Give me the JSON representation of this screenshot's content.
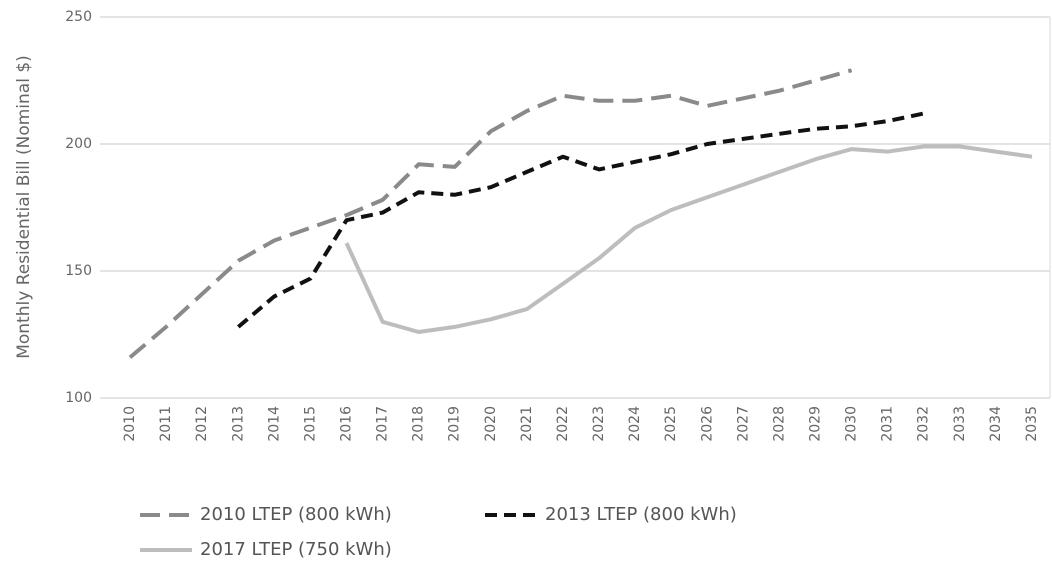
{
  "chart_data": {
    "type": "line",
    "ylabel": "Monthly Residential Bill (Nominal $)",
    "categories": [
      "2010",
      "2011",
      "2012",
      "2013",
      "2014",
      "2015",
      "2016",
      "2017",
      "2018",
      "2019",
      "2020",
      "2021",
      "2022",
      "2023",
      "2024",
      "2025",
      "2026",
      "2027",
      "2028",
      "2029",
      "2030",
      "2031",
      "2032",
      "2033",
      "2034",
      "2035"
    ],
    "ylim": [
      100,
      250
    ],
    "yticks": [
      100,
      150,
      200,
      250
    ],
    "grid": true,
    "legend": "bottom",
    "series": [
      {
        "name": "2010 LTEP (800 kWh)",
        "color": "#8a8a8a",
        "line_style": "long-dash",
        "values": [
          116,
          128,
          141,
          154,
          162,
          167,
          172,
          178,
          192,
          191,
          205,
          213,
          219,
          217,
          217,
          219,
          215,
          218,
          221,
          225,
          229,
          null,
          null,
          null,
          null,
          null
        ]
      },
      {
        "name": "2013 LTEP (800 kWh)",
        "color": "#111111",
        "line_style": "dash",
        "values": [
          null,
          null,
          null,
          128,
          140,
          147,
          170,
          173,
          181,
          180,
          183,
          189,
          195,
          190,
          193,
          196,
          200,
          202,
          204,
          206,
          207,
          209,
          212,
          null,
          null,
          null
        ]
      },
      {
        "name": "2017 LTEP (750 kWh)",
        "color": "#bdbdbd",
        "line_style": "solid",
        "values": [
          null,
          null,
          null,
          null,
          null,
          null,
          161,
          130,
          126,
          128,
          131,
          135,
          145,
          155,
          167,
          174,
          179,
          184,
          189,
          194,
          198,
          197,
          199,
          199,
          197,
          195
        ]
      }
    ]
  }
}
